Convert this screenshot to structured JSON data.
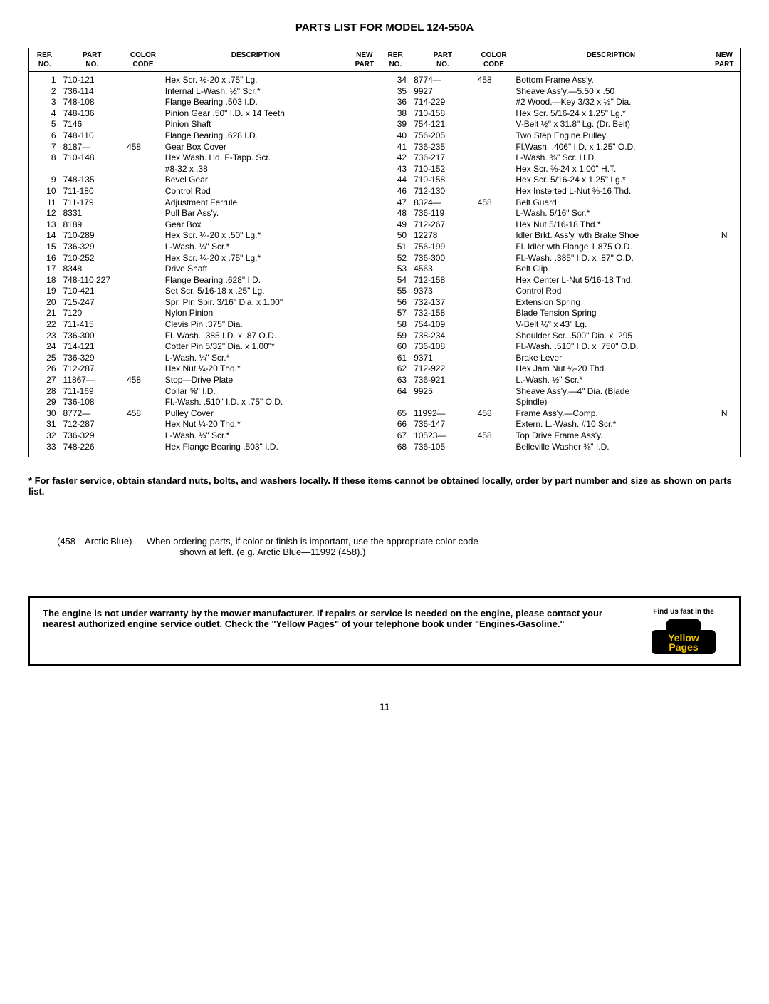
{
  "title": "PARTS LIST FOR MODEL 124-550A",
  "headers": {
    "ref": "REF.\nNO.",
    "part": "PART\nNO.",
    "color": "COLOR\nCODE",
    "desc": "DESCRIPTION",
    "newp": "NEW\nPART"
  },
  "rows_left": [
    {
      "ref": "1",
      "part": "710-121",
      "color": "",
      "desc": "Hex Scr. ½-20 x .75\" Lg.",
      "newp": ""
    },
    {
      "ref": "2",
      "part": "736-114",
      "color": "",
      "desc": "Internal L-Wash. ½\" Scr.*",
      "newp": ""
    },
    {
      "ref": "3",
      "part": "748-108",
      "color": "",
      "desc": "Flange Bearing .503 I.D.",
      "newp": ""
    },
    {
      "ref": "4",
      "part": "748-136",
      "color": "",
      "desc": "Pinion Gear .50\" I.D. x 14 Teeth",
      "newp": ""
    },
    {
      "ref": "5",
      "part": "7146",
      "color": "",
      "desc": "Pinion Shaft",
      "newp": ""
    },
    {
      "ref": "6",
      "part": "748-110",
      "color": "",
      "desc": "Flange Bearing .628 I.D.",
      "newp": ""
    },
    {
      "ref": "7",
      "part": "8187—",
      "color": "458",
      "desc": "Gear Box Cover",
      "newp": ""
    },
    {
      "ref": "8",
      "part": "710-148",
      "color": "",
      "desc": "Hex Wash. Hd. F-Tapp. Scr.",
      "newp": ""
    },
    {
      "ref": "",
      "part": "",
      "color": "",
      "desc": "#8-32 x .38",
      "newp": ""
    },
    {
      "ref": "9",
      "part": "748-135",
      "color": "",
      "desc": "Bevel Gear",
      "newp": ""
    },
    {
      "ref": "10",
      "part": "711-180",
      "color": "",
      "desc": "Control Rod",
      "newp": ""
    },
    {
      "ref": "11",
      "part": "711-179",
      "color": "",
      "desc": "Adjustment Ferrule",
      "newp": ""
    },
    {
      "ref": "12",
      "part": "8331",
      "color": "",
      "desc": "Pull Bar Ass'y.",
      "newp": ""
    },
    {
      "ref": "13",
      "part": "8189",
      "color": "",
      "desc": "Gear Box",
      "newp": ""
    },
    {
      "ref": "14",
      "part": "710-289",
      "color": "",
      "desc": "Hex Scr. ¼-20 x .50\" Lg.*",
      "newp": ""
    },
    {
      "ref": "15",
      "part": "736-329",
      "color": "",
      "desc": "L-Wash. ¼\" Scr.*",
      "newp": ""
    },
    {
      "ref": "16",
      "part": "710-252",
      "color": "",
      "desc": "Hex Scr. ¼-20 x .75\" Lg.*",
      "newp": ""
    },
    {
      "ref": "17",
      "part": "8348",
      "color": "",
      "desc": "Drive Shaft",
      "newp": ""
    },
    {
      "ref": "18",
      "part": "748-110 227",
      "color": "",
      "desc": "Flange Bearing .628\" I.D.",
      "newp": ""
    },
    {
      "ref": "19",
      "part": "710-421",
      "color": "",
      "desc": "Set Scr. 5/16-18 x .25\" Lg.",
      "newp": ""
    },
    {
      "ref": "20",
      "part": "715-247",
      "color": "",
      "desc": "Spr. Pin Spir. 3/16\" Dia. x 1.00\"",
      "newp": ""
    },
    {
      "ref": "21",
      "part": "7120",
      "color": "",
      "desc": "Nylon Pinion",
      "newp": ""
    },
    {
      "ref": "22",
      "part": "711-415",
      "color": "",
      "desc": "Clevis Pin .375\" Dia.",
      "newp": ""
    },
    {
      "ref": "23",
      "part": "736-300",
      "color": "",
      "desc": "Fl. Wash. .385 I.D. x .87 O.D.",
      "newp": ""
    },
    {
      "ref": "24",
      "part": "714-121",
      "color": "",
      "desc": "Cotter Pin 5/32\" Dia. x 1.00\"*",
      "newp": ""
    },
    {
      "ref": "25",
      "part": "736-329",
      "color": "",
      "desc": "L-Wash. ¼\" Scr.*",
      "newp": ""
    },
    {
      "ref": "26",
      "part": "712-287",
      "color": "",
      "desc": "Hex Nut ¼-20 Thd.*",
      "newp": ""
    },
    {
      "ref": "27",
      "part": "11867—",
      "color": "458",
      "desc": "Stop—Drive Plate",
      "newp": ""
    },
    {
      "ref": "28",
      "part": "711-169",
      "color": "",
      "desc": "Collar ⅝\" I.D.",
      "newp": ""
    },
    {
      "ref": "29",
      "part": "736-108",
      "color": "",
      "desc": "Fl.-Wash. .510\" I.D. x .75\" O.D.",
      "newp": ""
    },
    {
      "ref": "30",
      "part": "8772—",
      "color": "458",
      "desc": "Pulley Cover",
      "newp": ""
    },
    {
      "ref": "31",
      "part": "712-287",
      "color": "",
      "desc": "Hex Nut ¼-20 Thd.*",
      "newp": ""
    },
    {
      "ref": "32",
      "part": "736-329",
      "color": "",
      "desc": "L-Wash. ¼\" Scr.*",
      "newp": ""
    },
    {
      "ref": "33",
      "part": "748-226",
      "color": "",
      "desc": "Hex Flange Bearing .503\" I.D.",
      "newp": ""
    }
  ],
  "rows_right": [
    {
      "ref": "34",
      "part": "8774—",
      "color": "458",
      "desc": "Bottom Frame Ass'y.",
      "newp": ""
    },
    {
      "ref": "35",
      "part": "9927",
      "color": "",
      "desc": "Sheave Ass'y.—5.50 x .50",
      "newp": ""
    },
    {
      "ref": "36",
      "part": "714-229",
      "color": "",
      "desc": "#2 Wood.—Key 3/32 x ½\" Dia.",
      "newp": ""
    },
    {
      "ref": "38",
      "part": "710-158",
      "color": "",
      "desc": "Hex Scr. 5/16-24 x 1.25\" Lg.*",
      "newp": ""
    },
    {
      "ref": "39",
      "part": "754-121",
      "color": "",
      "desc": "V-Belt ½\" x 31.8\" Lg. (Dr. Belt)",
      "newp": ""
    },
    {
      "ref": "40",
      "part": "756-205",
      "color": "",
      "desc": "Two Step Engine Pulley",
      "newp": ""
    },
    {
      "ref": "41",
      "part": "736-235",
      "color": "",
      "desc": "Fl.Wash. .406\" I.D. x 1.25\" O.D.",
      "newp": ""
    },
    {
      "ref": "42",
      "part": "736-217",
      "color": "",
      "desc": "L-Wash. ⅜\" Scr. H.D.",
      "newp": ""
    },
    {
      "ref": "43",
      "part": "710-152",
      "color": "",
      "desc": "Hex Scr. ⅜-24 x 1.00\" H.T.",
      "newp": ""
    },
    {
      "ref": "44",
      "part": "710-158",
      "color": "",
      "desc": "Hex Scr. 5/16-24 x 1.25\" Lg.*",
      "newp": ""
    },
    {
      "ref": "46",
      "part": "712-130",
      "color": "",
      "desc": "Hex Insterted L-Nut ⅜-16 Thd.",
      "newp": ""
    },
    {
      "ref": "47",
      "part": "8324—",
      "color": "458",
      "desc": "Belt Guard",
      "newp": ""
    },
    {
      "ref": "48",
      "part": "736-119",
      "color": "",
      "desc": "L-Wash. 5/16\" Scr.*",
      "newp": ""
    },
    {
      "ref": "49",
      "part": "712-267",
      "color": "",
      "desc": "Hex Nut 5/16-18 Thd.*",
      "newp": ""
    },
    {
      "ref": "50",
      "part": "12278",
      "color": "",
      "desc": "Idler Brkt. Ass'y. wth Brake Shoe",
      "newp": "N"
    },
    {
      "ref": "51",
      "part": "756-199",
      "color": "",
      "desc": "Fl. Idler wth Flange 1.875 O.D.",
      "newp": ""
    },
    {
      "ref": "52",
      "part": "736-300",
      "color": "",
      "desc": "Fl.-Wash. .385\" I.D. x .87\" O.D.",
      "newp": ""
    },
    {
      "ref": "53",
      "part": "4563",
      "color": "",
      "desc": "Belt Clip",
      "newp": ""
    },
    {
      "ref": "54",
      "part": "712-158",
      "color": "",
      "desc": "Hex Center L-Nut 5/16-18 Thd.",
      "newp": ""
    },
    {
      "ref": "55",
      "part": "9373",
      "color": "",
      "desc": "Control Rod",
      "newp": ""
    },
    {
      "ref": "56",
      "part": "732-137",
      "color": "",
      "desc": "Extension Spring",
      "newp": ""
    },
    {
      "ref": "57",
      "part": "732-158",
      "color": "",
      "desc": "Blade Tension Spring",
      "newp": ""
    },
    {
      "ref": "58",
      "part": "754-109",
      "color": "",
      "desc": "V-Belt ½\" x 43\" Lg.",
      "newp": ""
    },
    {
      "ref": "59",
      "part": "738-234",
      "color": "",
      "desc": "Shoulder Scr. .500\" Dia. x .295",
      "newp": ""
    },
    {
      "ref": "60",
      "part": "736-108",
      "color": "",
      "desc": "Fl.-Wash. .510\" I.D. x .750\" O.D.",
      "newp": ""
    },
    {
      "ref": "61",
      "part": "9371",
      "color": "",
      "desc": "Brake Lever",
      "newp": ""
    },
    {
      "ref": "62",
      "part": "712-922",
      "color": "",
      "desc": "Hex Jam Nut ½-20 Thd.",
      "newp": ""
    },
    {
      "ref": "63",
      "part": "736-921",
      "color": "",
      "desc": "L.-Wash. ½\" Scr.*",
      "newp": ""
    },
    {
      "ref": "64",
      "part": "9925",
      "color": "",
      "desc": "Sheave Ass'y.—4\" Dia. (Blade",
      "newp": ""
    },
    {
      "ref": "",
      "part": "",
      "color": "",
      "desc": "Spindle)",
      "newp": ""
    },
    {
      "ref": "65",
      "part": "11992—",
      "color": "458",
      "desc": "Frame Ass'y.—Comp.",
      "newp": "N"
    },
    {
      "ref": "66",
      "part": "736-147",
      "color": "",
      "desc": "Extern. L.-Wash. #10 Scr.*",
      "newp": ""
    },
    {
      "ref": "67",
      "part": "10523—",
      "color": "458",
      "desc": "Top Drive Frame Ass'y.",
      "newp": ""
    },
    {
      "ref": "68",
      "part": "736-105",
      "color": "",
      "desc": "Belleville Washer ⅜\" I.D.",
      "newp": ""
    }
  ],
  "footnote": "* For faster service, obtain standard nuts, bolts, and washers locally. If these items cannot be obtained locally, order by part number and size as shown on parts list.",
  "colornote1": "(458—Arctic Blue) — When ordering parts, if color or finish is important, use the appropriate color code",
  "colornote2": "shown at left. (e.g. Arctic Blue—11992 (458).)",
  "warn_find": "Find us fast in the",
  "warn_text": "The engine is not under warranty by the mower manufacturer. If repairs or service is needed on the engine, please contact your nearest authorized engine service outlet. Check the \"Yellow Pages\" of your telephone book under \"Engines-Gasoline.\"",
  "yp_yellow": "Yellow",
  "yp_pages": "Pages",
  "pagenum": "11"
}
